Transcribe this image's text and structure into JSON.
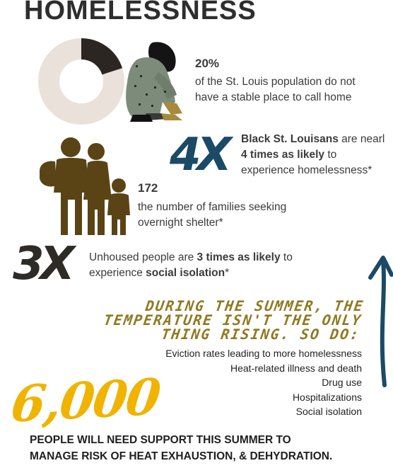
{
  "title": "HOMELESSNESS",
  "stat1": {
    "value": "20%",
    "line1": "of the St. Louis population do not",
    "line2": "have a stable place to call home",
    "fraction": 0.2
  },
  "stat2": {
    "multiplier": "4X",
    "line1_bold": "Black St. Louisans",
    "line1_rest": " are nearl",
    "line2_bold": "4 times as likely",
    "line2_rest": " to",
    "line3": "experience homelessness*"
  },
  "stat3": {
    "value": "172",
    "line1": "the number of families seeking",
    "line2": "overnight shelter*"
  },
  "stat4": {
    "multiplier": "3X",
    "line1_pre": "Unhoused people are ",
    "line1_bold": "3 times as likely",
    "line1_post": " to",
    "line2_pre": "experience ",
    "line2_bold": "social isolation",
    "line2_post": "*"
  },
  "summer": {
    "line1": "DURING THE SUMMER, THE",
    "line2": "TEMPERATURE ISN'T THE ONLY",
    "line3": "THING RISING. SO DO:",
    "items": [
      "Eviction rates leading to more homelessness",
      "Heat-related illness and death",
      "Drug use",
      "Hospitalizations",
      "Social isolation"
    ]
  },
  "big_number": "6,000",
  "bottom": {
    "line1": "PEOPLE WILL NEED SUPPORT THIS SUMMER TO",
    "line2": "MANAGE RISK OF HEAT EXHAUSTION, & DEHYDRATION."
  },
  "colors": {
    "donut_light": "#e9e1da",
    "donut_dark": "#2b2622",
    "teal": "#1b4a66",
    "family_brown": "#5a4416",
    "mult_dark": "#2e2a26",
    "gold_text": "#8f7a22",
    "six_gold": "#f0b400",
    "figure_green": "#7d8c7a"
  },
  "icons": {
    "donut": "donut-chart-icon",
    "person": "sitting-person-icon",
    "family": "family-icon",
    "arrow": "rising-arrow-icon"
  }
}
